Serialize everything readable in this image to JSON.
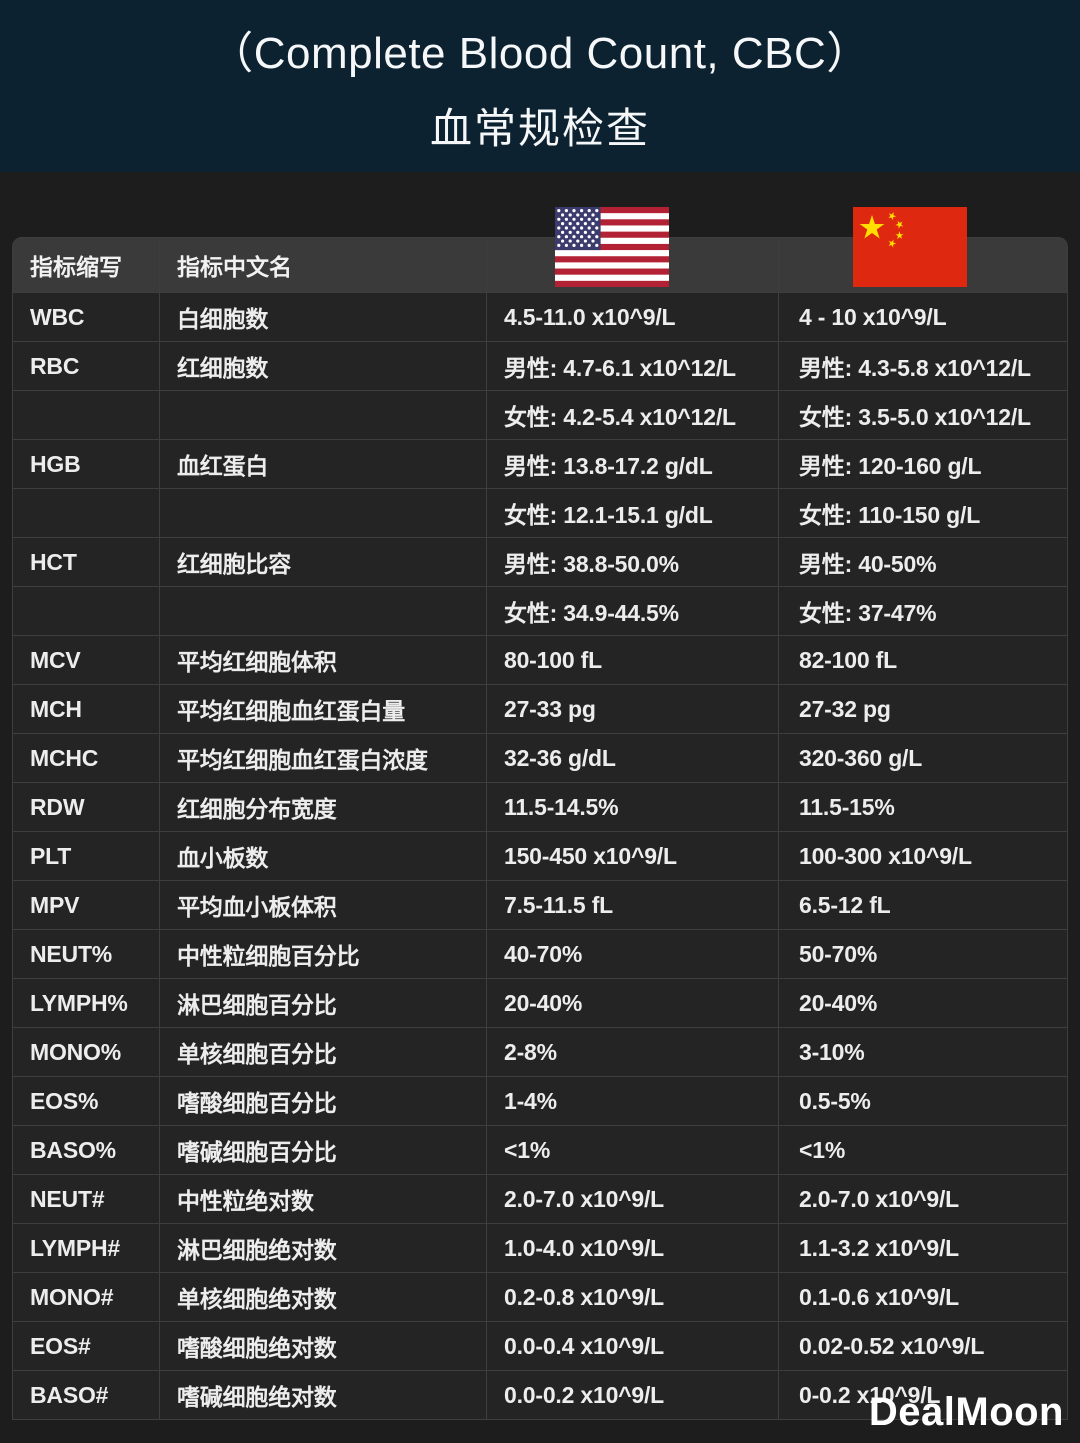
{
  "header": {
    "title_en": "（Complete Blood Count, CBC）",
    "title_zh": "血常规检查"
  },
  "colors": {
    "banner_bg": "#0c2231",
    "page_bg": "#1d1d1d",
    "header_row_bg": "#3a3a3a",
    "cell_bg": "#242424",
    "border": "#3e3e3e",
    "text": "#ededed",
    "us_flag_red": "#B22234",
    "us_flag_blue": "#3C3B6E",
    "china_flag_red": "#DE2910",
    "china_flag_yellow": "#FFDE00"
  },
  "table": {
    "headers": [
      "指标缩写",
      "指标中文名"
    ],
    "us_column_icon": "us-flag",
    "china_column_icon": "china-flag",
    "rows": [
      [
        "WBC",
        "白细胞数",
        "4.5-11.0 x10^9/L",
        "4 - 10 x10^9/L"
      ],
      [
        "RBC",
        "红细胞数",
        "男性: 4.7-6.1 x10^12/L",
        "男性: 4.3-5.8 x10^12/L"
      ],
      [
        "",
        "",
        "女性: 4.2-5.4 x10^12/L",
        "女性: 3.5-5.0 x10^12/L"
      ],
      [
        "HGB",
        "血红蛋白",
        "男性: 13.8-17.2 g/dL",
        "男性: 120-160 g/L"
      ],
      [
        "",
        "",
        "女性: 12.1-15.1 g/dL",
        "女性: 110-150 g/L"
      ],
      [
        "HCT",
        "红细胞比容",
        "男性: 38.8-50.0%",
        "男性: 40-50%"
      ],
      [
        "",
        "",
        "女性: 34.9-44.5%",
        "女性: 37-47%"
      ],
      [
        "MCV",
        "平均红细胞体积",
        "80-100 fL",
        "82-100 fL"
      ],
      [
        "MCH",
        "平均红细胞血红蛋白量",
        "27-33 pg",
        "27-32 pg"
      ],
      [
        "MCHC",
        "平均红细胞血红蛋白浓度",
        "32-36 g/dL",
        "320-360 g/L"
      ],
      [
        "RDW",
        "红细胞分布宽度",
        "11.5-14.5%",
        "11.5-15%"
      ],
      [
        "PLT",
        "血小板数",
        "150-450 x10^9/L",
        "100-300 x10^9/L"
      ],
      [
        "MPV",
        "平均血小板体积",
        "7.5-11.5 fL",
        "6.5-12 fL"
      ],
      [
        "NEUT%",
        "中性粒细胞百分比",
        "40-70%",
        "50-70%"
      ],
      [
        "LYMPH%",
        "淋巴细胞百分比",
        "20-40%",
        "20-40%"
      ],
      [
        "MONO%",
        "单核细胞百分比",
        "2-8%",
        "3-10%"
      ],
      [
        "EOS%",
        "嗜酸细胞百分比",
        "1-4%",
        "0.5-5%"
      ],
      [
        "BASO%",
        "嗜碱细胞百分比",
        "<1%",
        "<1%"
      ],
      [
        "NEUT#",
        "中性粒绝对数",
        "2.0-7.0 x10^9/L",
        "2.0-7.0 x10^9/L"
      ],
      [
        "LYMPH#",
        "淋巴细胞绝对数",
        "1.0-4.0 x10^9/L",
        "1.1-3.2 x10^9/L"
      ],
      [
        "MONO#",
        "单核细胞绝对数",
        "0.2-0.8 x10^9/L",
        "0.1-0.6 x10^9/L"
      ],
      [
        "EOS#",
        "嗜酸细胞绝对数",
        "0.0-0.4 x10^9/L",
        "0.02-0.52 x10^9/L"
      ],
      [
        "BASO#",
        "嗜碱细胞绝对数",
        "0.0-0.2 x10^9/L",
        "0-0.2 x10^9/L"
      ]
    ]
  },
  "footer": {
    "watermark": "DealMoon"
  }
}
